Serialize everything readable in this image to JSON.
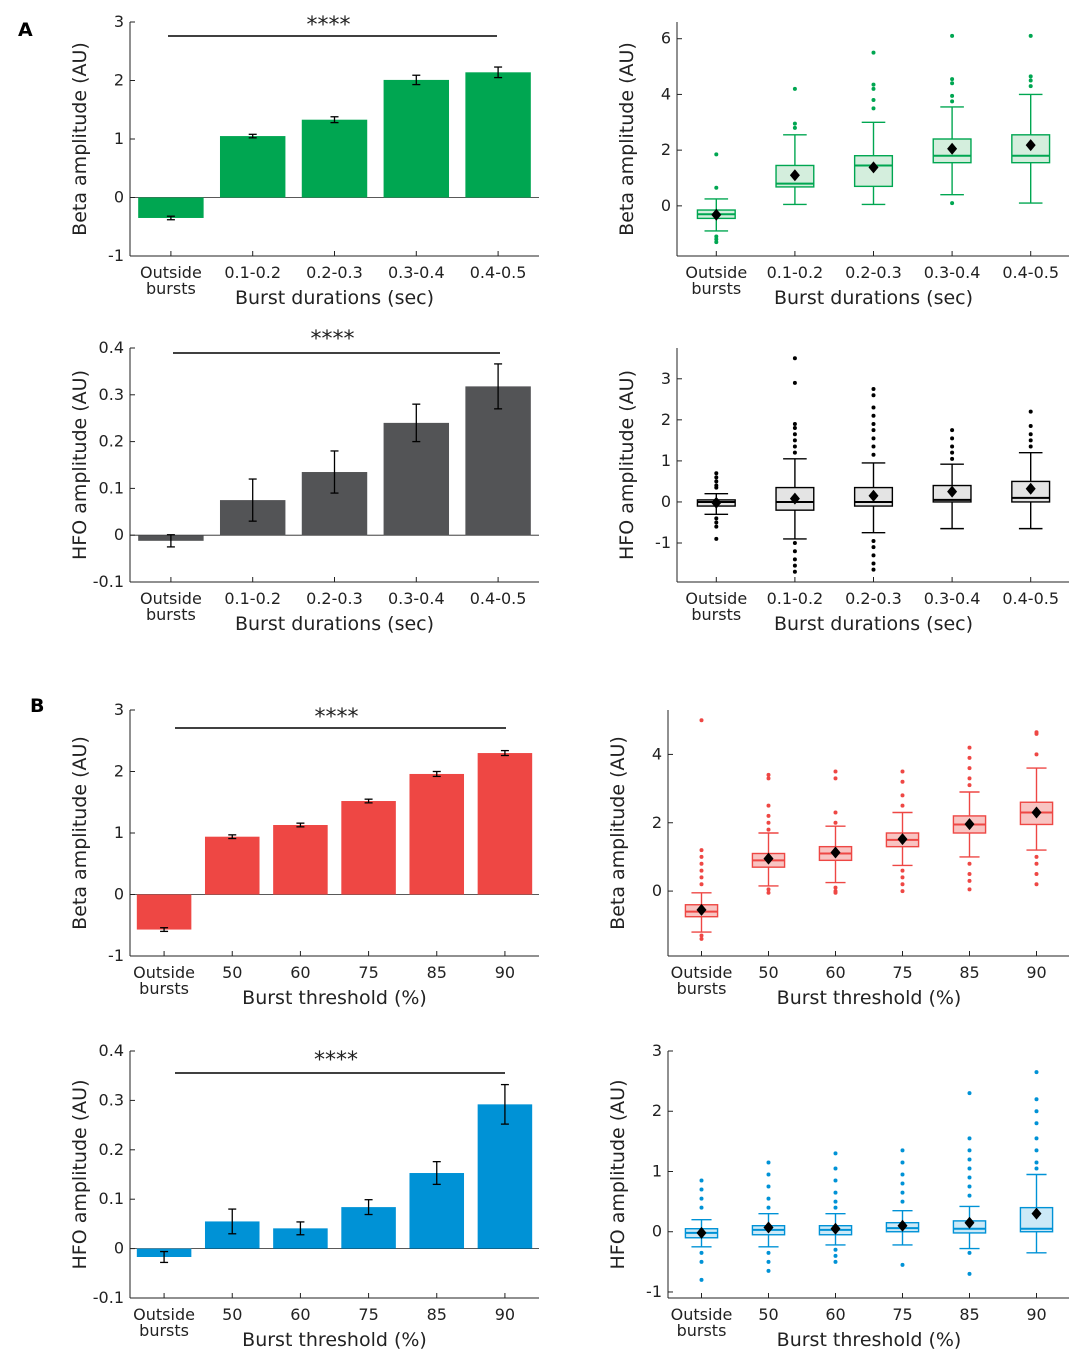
{
  "panel_labels": [
    "A",
    "B"
  ],
  "chart_data": [
    {
      "type": "bar",
      "panel": "A",
      "color": "#00a651",
      "categories": [
        "Outside\nbursts",
        "0.1-0.2",
        "0.2-0.3",
        "0.3-0.4",
        "0.4-0.5"
      ],
      "values": [
        -0.35,
        1.05,
        1.33,
        2.01,
        2.14
      ],
      "errors": [
        0.03,
        0.03,
        0.05,
        0.08,
        0.09
      ],
      "xlabel": "Burst durations (sec)",
      "ylabel": "Beta amplitude (AU)",
      "ylim": [
        -1,
        3
      ],
      "yticks": [
        -1,
        0,
        1,
        2,
        3
      ],
      "yticklabels": [
        "-1",
        "0",
        "1",
        "2",
        "3"
      ],
      "significance": "****"
    },
    {
      "type": "box",
      "panel": "A",
      "color": "#00a651",
      "fill": "#d4eedd",
      "categories": [
        "Outside\nbursts",
        "0.1-0.2",
        "0.2-0.3",
        "0.3-0.4",
        "0.4-0.5"
      ],
      "boxes": [
        {
          "whislo": -0.9,
          "q1": -0.45,
          "median": -0.3,
          "q3": -0.15,
          "whishi": 0.25,
          "mean": -0.32,
          "fliers": [
            1.85,
            0.65,
            -1.1,
            -1.2,
            -1.3
          ]
        },
        {
          "whislo": 0.05,
          "q1": 0.68,
          "median": 0.8,
          "q3": 1.45,
          "whishi": 2.55,
          "mean": 1.1,
          "fliers": [
            2.8,
            2.95,
            4.2
          ]
        },
        {
          "whislo": 0.05,
          "q1": 0.7,
          "median": 1.45,
          "q3": 1.8,
          "whishi": 3.0,
          "mean": 1.38,
          "fliers": [
            3.5,
            3.8,
            4.2,
            4.35,
            5.5
          ]
        },
        {
          "whislo": 0.4,
          "q1": 1.55,
          "median": 1.8,
          "q3": 2.4,
          "whishi": 3.55,
          "mean": 2.05,
          "fliers": [
            0.1,
            3.75,
            3.95,
            4.4,
            4.55,
            6.1
          ]
        },
        {
          "whislo": 0.1,
          "q1": 1.55,
          "median": 1.8,
          "q3": 2.55,
          "whishi": 4.0,
          "mean": 2.18,
          "fliers": [
            4.3,
            4.5,
            4.65,
            6.1
          ]
        }
      ],
      "xlabel": "Burst durations (sec)",
      "ylabel": "Beta amplitude (AU)",
      "ylim": [
        -1.8,
        6.6
      ],
      "yticks": [
        0,
        2,
        4,
        6
      ],
      "yticklabels": [
        "0",
        "2",
        "4",
        "6"
      ]
    },
    {
      "type": "bar",
      "panel": "A",
      "color": "#535456",
      "categories": [
        "Outside\nbursts",
        "0.1-0.2",
        "0.2-0.3",
        "0.3-0.4",
        "0.4-0.5"
      ],
      "values": [
        -0.012,
        0.075,
        0.135,
        0.24,
        0.318
      ],
      "errors": [
        0.013,
        0.045,
        0.045,
        0.04,
        0.048
      ],
      "xlabel": "Burst durations (sec)",
      "ylabel": "HFO amplitude (AU)",
      "ylim": [
        -0.1,
        0.4
      ],
      "yticks": [
        -0.1,
        0,
        0.1,
        0.2,
        0.3,
        0.4
      ],
      "yticklabels": [
        "-0.1",
        "0",
        "0.1",
        "0.2",
        "0.3",
        "0.4"
      ],
      "significance": "****"
    },
    {
      "type": "box",
      "panel": "A",
      "color": "#000000",
      "fill": "#e4e4e4",
      "categories": [
        "Outside\nbursts",
        "0.1-0.2",
        "0.2-0.3",
        "0.3-0.4",
        "0.4-0.5"
      ],
      "boxes": [
        {
          "whislo": -0.3,
          "q1": -0.1,
          "median": 0.0,
          "q3": 0.05,
          "whishi": 0.2,
          "mean": -0.02,
          "fliers": [
            0.7,
            0.6,
            0.5,
            0.4,
            0.35,
            -0.4,
            -0.5,
            -0.6,
            -0.9
          ]
        },
        {
          "whislo": -0.9,
          "q1": -0.2,
          "median": 0.0,
          "q3": 0.35,
          "whishi": 1.05,
          "mean": 0.08,
          "fliers": [
            1.2,
            1.35,
            1.5,
            1.65,
            1.8,
            1.9,
            2.9,
            3.5,
            -1.0,
            -1.2,
            -1.4,
            -1.55,
            -1.7
          ]
        },
        {
          "whislo": -0.75,
          "q1": -0.1,
          "median": 0.0,
          "q3": 0.35,
          "whishi": 0.95,
          "mean": 0.15,
          "fliers": [
            1.15,
            1.35,
            1.55,
            1.75,
            1.9,
            2.1,
            2.3,
            2.6,
            2.75,
            -0.95,
            -1.1,
            -1.3,
            -1.5,
            -1.65
          ]
        },
        {
          "whislo": -0.65,
          "q1": 0.0,
          "median": 0.05,
          "q3": 0.4,
          "whishi": 0.92,
          "mean": 0.25,
          "fliers": [
            1.05,
            1.2,
            1.35,
            1.55,
            1.75
          ]
        },
        {
          "whislo": -0.65,
          "q1": 0.0,
          "median": 0.1,
          "q3": 0.5,
          "whishi": 1.2,
          "mean": 0.32,
          "fliers": [
            1.35,
            1.5,
            1.65,
            1.85,
            2.2
          ]
        }
      ],
      "xlabel": "Burst durations (sec)",
      "ylabel": "HFO amplitude (AU)",
      "ylim": [
        -1.95,
        3.75
      ],
      "yticks": [
        -1,
        0,
        1,
        2,
        3
      ],
      "yticklabels": [
        "-1",
        "0",
        "1",
        "2",
        "3"
      ]
    },
    {
      "type": "bar",
      "panel": "B",
      "color": "#ee4744",
      "categories": [
        "Outside\nbursts",
        "50",
        "60",
        "75",
        "85",
        "90"
      ],
      "values": [
        -0.57,
        0.94,
        1.13,
        1.52,
        1.96,
        2.3
      ],
      "errors": [
        0.03,
        0.03,
        0.03,
        0.03,
        0.04,
        0.04
      ],
      "xlabel": "Burst threshold (%)",
      "ylabel": "Beta amplitude (AU)",
      "ylim": [
        -1,
        3
      ],
      "yticks": [
        -1,
        0,
        1,
        2,
        3
      ],
      "yticklabels": [
        "-1",
        "0",
        "1",
        "2",
        "3"
      ],
      "significance": "****"
    },
    {
      "type": "box",
      "panel": "B",
      "color": "#ee4744",
      "fill": "#f8c4c2",
      "categories": [
        "Outside\nbursts",
        "50",
        "60",
        "75",
        "85",
        "90"
      ],
      "boxes": [
        {
          "whislo": -1.2,
          "q1": -0.75,
          "median": -0.6,
          "q3": -0.4,
          "whishi": -0.05,
          "mean": -0.55,
          "fliers": [
            5.0,
            1.2,
            1.0,
            0.8,
            0.6,
            0.4,
            0.2,
            -1.3,
            -1.4
          ]
        },
        {
          "whislo": 0.15,
          "q1": 0.7,
          "median": 0.9,
          "q3": 1.1,
          "whishi": 1.7,
          "mean": 0.95,
          "fliers": [
            1.8,
            2.0,
            2.2,
            2.5,
            3.3,
            3.4,
            0.05,
            -0.05
          ]
        },
        {
          "whislo": 0.25,
          "q1": 0.9,
          "median": 1.1,
          "q3": 1.3,
          "whishi": 1.9,
          "mean": 1.13,
          "fliers": [
            2.0,
            2.3,
            3.3,
            3.5,
            0.1,
            0.0,
            -0.05
          ]
        },
        {
          "whislo": 0.75,
          "q1": 1.3,
          "median": 1.5,
          "q3": 1.7,
          "whishi": 2.3,
          "mean": 1.52,
          "fliers": [
            2.5,
            2.8,
            3.2,
            3.5,
            0.6,
            0.4,
            0.2,
            0.0
          ]
        },
        {
          "whislo": 1.0,
          "q1": 1.7,
          "median": 1.95,
          "q3": 2.2,
          "whishi": 2.9,
          "mean": 1.96,
          "fliers": [
            3.1,
            3.3,
            3.6,
            3.9,
            4.2,
            0.8,
            0.5,
            0.3,
            0.05
          ]
        },
        {
          "whislo": 1.2,
          "q1": 1.95,
          "median": 2.3,
          "q3": 2.6,
          "whishi": 3.6,
          "mean": 2.3,
          "fliers": [
            4.0,
            4.6,
            4.65,
            1.0,
            0.8,
            0.5,
            0.2
          ]
        }
      ],
      "xlabel": "Burst threshold (%)",
      "ylabel": "Beta amplitude (AU)",
      "ylim": [
        -1.9,
        5.3
      ],
      "yticks": [
        0,
        2,
        4
      ],
      "yticklabels": [
        "0",
        "2",
        "4"
      ]
    },
    {
      "type": "bar",
      "panel": "B",
      "color": "#0092d6",
      "categories": [
        "Outside\nbursts",
        "50",
        "60",
        "75",
        "85",
        "90"
      ],
      "values": [
        -0.017,
        0.055,
        0.041,
        0.084,
        0.153,
        0.292
      ],
      "errors": [
        0.011,
        0.025,
        0.013,
        0.015,
        0.023,
        0.04
      ],
      "xlabel": "Burst threshold (%)",
      "ylabel": "HFO amplitude (AU)",
      "ylim": [
        -0.1,
        0.4
      ],
      "yticks": [
        -0.1,
        0,
        0.1,
        0.2,
        0.3,
        0.4
      ],
      "yticklabels": [
        "-0.1",
        "0",
        "0.1",
        "0.2",
        "0.3",
        "0.4"
      ],
      "significance": "****"
    },
    {
      "type": "box",
      "panel": "B",
      "color": "#0092d6",
      "fill": "#cce9f7",
      "categories": [
        "Outside\nbursts",
        "50",
        "60",
        "75",
        "85",
        "90"
      ],
      "boxes": [
        {
          "whislo": -0.25,
          "q1": -0.1,
          "median": -0.02,
          "q3": 0.05,
          "whishi": 0.2,
          "mean": -0.02,
          "fliers": [
            0.85,
            0.7,
            0.55,
            0.4,
            -0.35,
            -0.5,
            -0.8
          ]
        },
        {
          "whislo": -0.25,
          "q1": -0.05,
          "median": 0.03,
          "q3": 0.1,
          "whishi": 0.3,
          "mean": 0.07,
          "fliers": [
            1.15,
            0.95,
            0.75,
            0.55,
            0.4,
            -0.35,
            -0.5,
            -0.65
          ]
        },
        {
          "whislo": -0.22,
          "q1": -0.05,
          "median": 0.03,
          "q3": 0.1,
          "whishi": 0.3,
          "mean": 0.05,
          "fliers": [
            1.3,
            1.05,
            0.85,
            0.65,
            0.5,
            0.4,
            -0.3,
            -0.4,
            -0.5
          ]
        },
        {
          "whislo": -0.22,
          "q1": 0.0,
          "median": 0.06,
          "q3": 0.15,
          "whishi": 0.35,
          "mean": 0.1,
          "fliers": [
            1.35,
            1.15,
            0.95,
            0.8,
            0.65,
            0.5,
            -0.55
          ]
        },
        {
          "whislo": -0.28,
          "q1": -0.02,
          "median": 0.05,
          "q3": 0.18,
          "whishi": 0.42,
          "mean": 0.15,
          "fliers": [
            2.3,
            1.55,
            1.35,
            1.2,
            1.05,
            0.9,
            0.75,
            0.6,
            -0.35,
            -0.7
          ]
        },
        {
          "whislo": -0.35,
          "q1": 0.0,
          "median": 0.05,
          "q3": 0.4,
          "whishi": 0.95,
          "mean": 0.3,
          "fliers": [
            2.65,
            2.2,
            2.0,
            1.8,
            1.55,
            1.35,
            1.15,
            1.05
          ]
        }
      ],
      "xlabel": "Burst threshold (%)",
      "ylabel": "HFO amplitude (AU)",
      "ylim": [
        -1.1,
        3.0
      ],
      "yticks": [
        -1,
        0,
        1,
        2,
        3
      ],
      "yticklabels": [
        "-1",
        "0",
        "1",
        "2",
        "3"
      ]
    }
  ]
}
